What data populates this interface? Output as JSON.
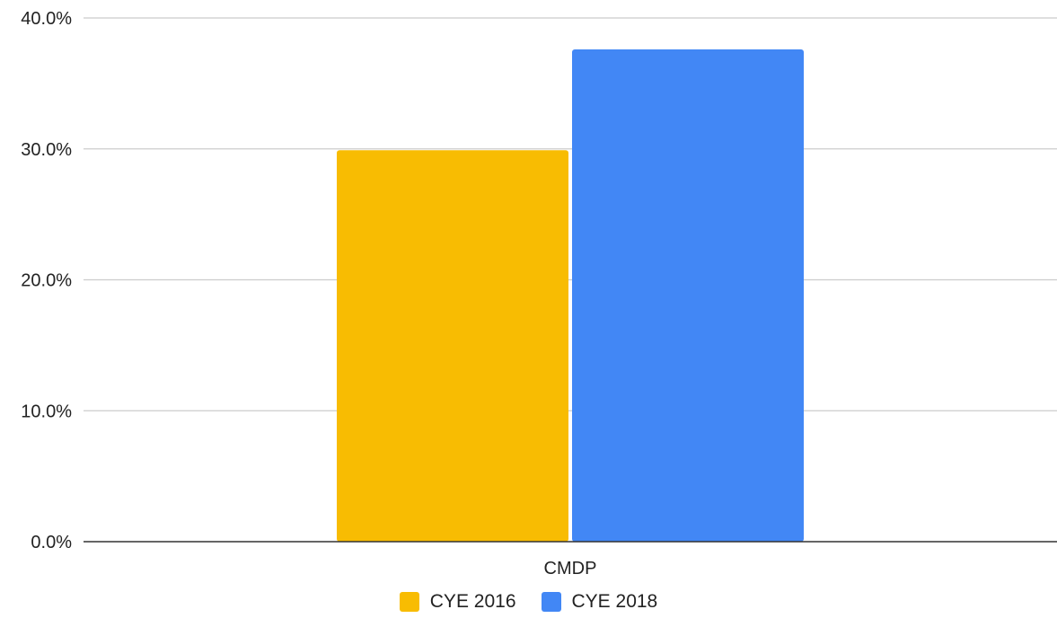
{
  "chart_data": {
    "type": "bar",
    "title": "",
    "xlabel": "",
    "ylabel": "",
    "categories": [
      "CMDP"
    ],
    "series": [
      {
        "name": "CYE 2016",
        "values": [
          29.9
        ],
        "color": "#F8BC02"
      },
      {
        "name": "CYE 2018",
        "values": [
          37.6
        ],
        "color": "#4287F5"
      }
    ],
    "ylim": [
      0,
      40
    ],
    "y_ticks": [
      0,
      10,
      20,
      30,
      40
    ],
    "y_tick_labels": [
      "0.0%",
      "10.0%",
      "20.0%",
      "30.0%",
      "40.0%"
    ],
    "grid": true,
    "legend_position": "bottom",
    "colors": {
      "grid": "#CCCCCC",
      "axis": "#333333",
      "text": "#222222"
    }
  }
}
